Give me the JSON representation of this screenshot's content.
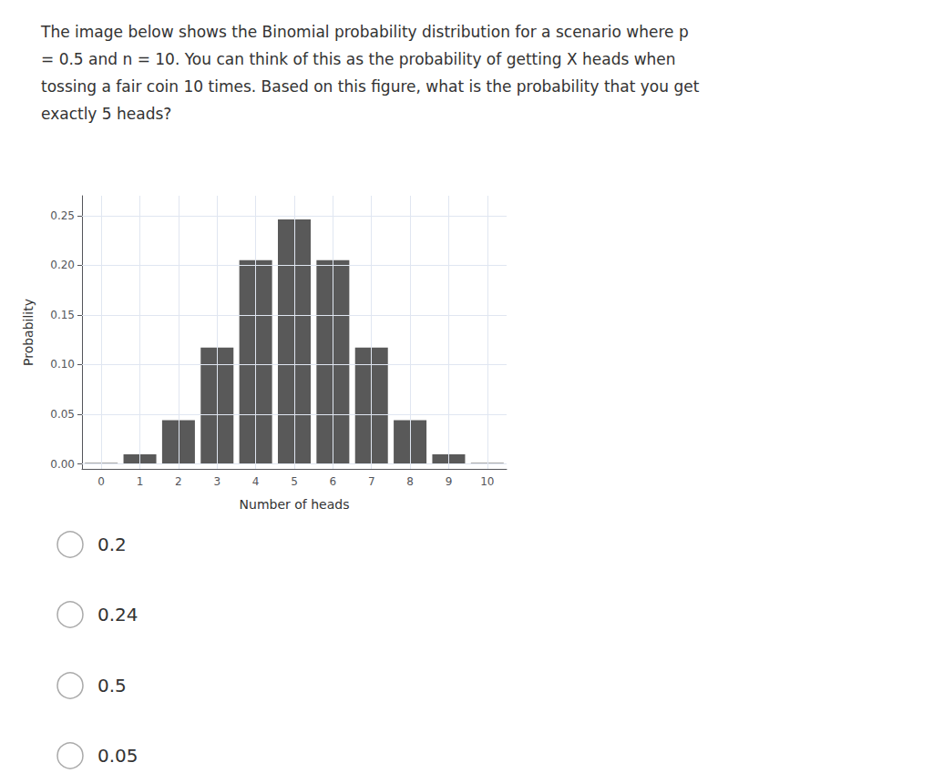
{
  "chart_data": {
    "type": "bar",
    "title": "The image below shows the Binomial probability distribution for a scenario where p\n= 0.5 and n = 10. You can think of this as the probability of getting X heads when\ntossing a fair coin 10 times. Based on this figure, what is the probability that you get\nexactly 5 heads?",
    "xlabel": "Number of heads",
    "ylabel": "Probability",
    "categories": [
      "0",
      "1",
      "2",
      "3",
      "4",
      "5",
      "6",
      "7",
      "8",
      "9",
      "10"
    ],
    "values": [
      0.0009765625,
      0.009765625,
      0.0439453125,
      0.1171875,
      0.205078125,
      0.24609375,
      0.205078125,
      0.1171875,
      0.0439453125,
      0.009765625,
      0.0009765625
    ],
    "color": "#595959",
    "ylim": [
      -0.005,
      0.27
    ],
    "yticks": [
      {
        "value": 0,
        "label": "0.00"
      },
      {
        "value": 0.05,
        "label": "0.05"
      },
      {
        "value": 0.1,
        "label": "0.10"
      },
      {
        "value": 0.15,
        "label": "0.15"
      },
      {
        "value": 0.2,
        "label": "0.20"
      },
      {
        "value": 0.25,
        "label": "0.25"
      }
    ],
    "grid": true,
    "annotations": [
      "0.2",
      "0.24",
      "0.5",
      "0.05"
    ]
  }
}
